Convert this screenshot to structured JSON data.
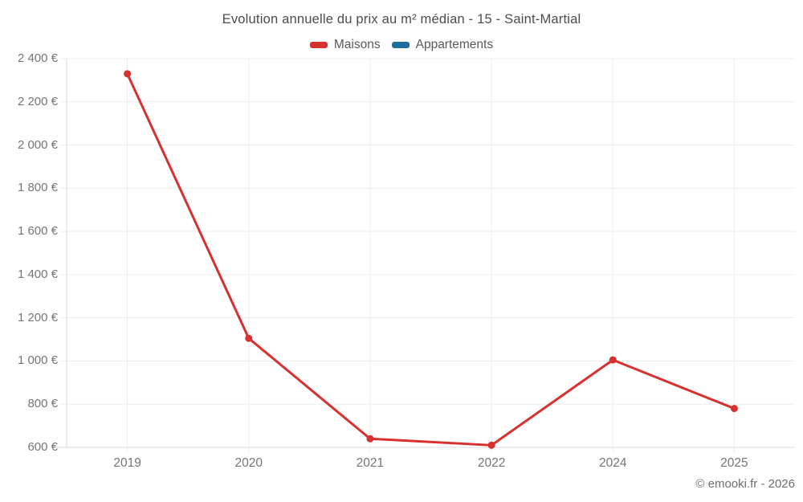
{
  "chart_data": {
    "type": "line",
    "title": "Evolution annuelle du prix au m² médian - 15 - Saint-Martial",
    "categories": [
      "2019",
      "2020",
      "2021",
      "2022",
      "2024",
      "2025"
    ],
    "series": [
      {
        "name": "Maisons",
        "color": "#d7302f",
        "values": [
          2330,
          1105,
          640,
          610,
          1005,
          780
        ]
      },
      {
        "name": "Appartements",
        "color": "#1c6ea4",
        "values": [
          null,
          null,
          null,
          null,
          null,
          null
        ]
      }
    ],
    "xlabel": "",
    "ylabel": "",
    "ylim": [
      600,
      2400
    ],
    "yticks": [
      {
        "value": 600,
        "label": "600 €"
      },
      {
        "value": 800,
        "label": "800 €"
      },
      {
        "value": 1000,
        "label": "1 000 €"
      },
      {
        "value": 1200,
        "label": "1 200 €"
      },
      {
        "value": 1400,
        "label": "1 400 €"
      },
      {
        "value": 1600,
        "label": "1 600 €"
      },
      {
        "value": 1800,
        "label": "1 800 €"
      },
      {
        "value": 2000,
        "label": "2 000 €"
      },
      {
        "value": 2200,
        "label": "2 200 €"
      },
      {
        "value": 2400,
        "label": "2 400 €"
      }
    ],
    "grid": true,
    "legend_position": "top",
    "footer": "© emooki.fr - 2026",
    "colors": {
      "grid": "#ededed",
      "axis": "#d9d9d9",
      "title_text": "#4c4c4c",
      "tick_text": "#757575",
      "footer_text": "#6e6e6e"
    }
  }
}
